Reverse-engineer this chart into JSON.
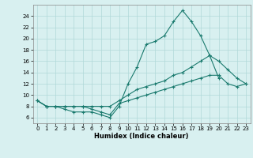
{
  "xlabel": "Humidex (Indice chaleur)",
  "ylabel": "",
  "x": [
    0,
    1,
    2,
    3,
    4,
    5,
    6,
    7,
    8,
    9,
    10,
    11,
    12,
    13,
    14,
    15,
    16,
    17,
    18,
    19,
    20,
    21,
    22,
    23
  ],
  "line1": [
    9,
    8,
    8,
    7.5,
    7,
    7,
    7,
    6.5,
    6,
    8,
    12,
    15,
    19,
    19.5,
    20.5,
    23,
    25,
    23,
    20.5,
    17,
    13,
    null,
    null,
    null
  ],
  "line2": [
    9,
    8,
    8,
    8,
    8,
    8,
    8,
    8,
    8,
    9,
    10,
    11,
    11.5,
    12,
    12.5,
    13.5,
    14,
    15,
    16,
    17,
    16,
    14.5,
    13,
    12
  ],
  "line3": [
    9,
    8,
    8,
    8,
    8,
    8,
    7.5,
    7,
    6.5,
    8.5,
    9,
    9.5,
    10,
    10.5,
    11,
    11.5,
    12,
    12.5,
    13,
    13.5,
    13.5,
    12,
    11.5,
    12
  ],
  "line_color": "#1a7a6e",
  "bg_color": "#d8f0f0",
  "grid_color": "#b0d8d8",
  "ylim": [
    5,
    26
  ],
  "xlim": [
    -0.5,
    23.5
  ],
  "yticks": [
    6,
    8,
    10,
    12,
    14,
    16,
    18,
    20,
    22,
    24
  ],
  "xticks": [
    0,
    1,
    2,
    3,
    4,
    5,
    6,
    7,
    8,
    9,
    10,
    11,
    12,
    13,
    14,
    15,
    16,
    17,
    18,
    19,
    20,
    21,
    22,
    23
  ],
  "marker_size": 2.5,
  "line_width": 0.8,
  "tick_fontsize": 5.0,
  "xlabel_fontsize": 6.0
}
